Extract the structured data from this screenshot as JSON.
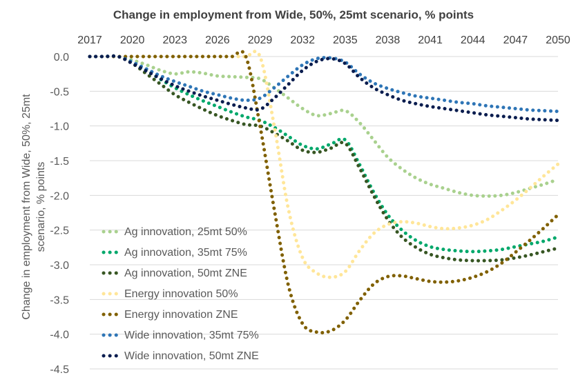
{
  "chart_data": {
    "type": "line",
    "title": "Change in employment from Wide, 50%, 25mt scenario, % points",
    "xlabel": "",
    "ylabel": "Change in employment from Wide, 50%, 25mt scenario, % points",
    "xlim": [
      2017,
      2050
    ],
    "ylim": [
      -4.5,
      0.0
    ],
    "x_ticks": [
      "2017",
      "2020",
      "2023",
      "2026",
      "2029",
      "2032",
      "2035",
      "2038",
      "2041",
      "2044",
      "2047",
      "2050"
    ],
    "y_ticks": [
      "0.0",
      "-0.5",
      "-1.0",
      "-1.5",
      "-2.0",
      "-2.5",
      "-3.0",
      "-3.5",
      "-4.0",
      "-4.5"
    ],
    "x_axis_position": "top",
    "grid": "horizontal",
    "legend_position": "bottom-left",
    "line_style": "dotted",
    "x": [
      2017,
      2018,
      2019,
      2020,
      2021,
      2022,
      2023,
      2024,
      2025,
      2026,
      2027,
      2028,
      2029,
      2030,
      2031,
      2032,
      2033,
      2034,
      2035,
      2036,
      2037,
      2038,
      2039,
      2040,
      2041,
      2042,
      2043,
      2044,
      2045,
      2046,
      2047,
      2048,
      2049,
      2050
    ],
    "series": [
      {
        "name": "Ag innovation, 25mt 50%",
        "color": "#a9d18e",
        "values": [
          0,
          0,
          0,
          -0.05,
          -0.12,
          -0.2,
          -0.25,
          -0.22,
          -0.24,
          -0.28,
          -0.29,
          -0.3,
          -0.32,
          -0.45,
          -0.6,
          -0.75,
          -0.85,
          -0.82,
          -0.78,
          -0.95,
          -1.2,
          -1.45,
          -1.62,
          -1.75,
          -1.84,
          -1.9,
          -1.96,
          -2.0,
          -2.01,
          -2.0,
          -1.96,
          -1.9,
          -1.84,
          -1.77
        ]
      },
      {
        "name": "Ag innovation, 35mt 75%",
        "color": "#00a86b",
        "values": [
          0,
          0,
          0,
          -0.08,
          -0.2,
          -0.33,
          -0.45,
          -0.55,
          -0.64,
          -0.72,
          -0.8,
          -0.87,
          -0.92,
          -1.02,
          -1.15,
          -1.28,
          -1.33,
          -1.26,
          -1.2,
          -1.55,
          -1.95,
          -2.28,
          -2.5,
          -2.65,
          -2.74,
          -2.78,
          -2.8,
          -2.81,
          -2.8,
          -2.78,
          -2.74,
          -2.7,
          -2.66,
          -2.6
        ]
      },
      {
        "name": "Ag innovation, 50mt ZNE",
        "color": "#375623",
        "values": [
          0,
          0,
          0,
          -0.1,
          -0.25,
          -0.4,
          -0.55,
          -0.66,
          -0.76,
          -0.85,
          -0.92,
          -0.98,
          -1.0,
          -1.1,
          -1.22,
          -1.35,
          -1.38,
          -1.32,
          -1.25,
          -1.6,
          -2.0,
          -2.35,
          -2.6,
          -2.75,
          -2.85,
          -2.9,
          -2.93,
          -2.94,
          -2.94,
          -2.93,
          -2.9,
          -2.86,
          -2.81,
          -2.76
        ]
      },
      {
        "name": "Energy innovation 50%",
        "color": "#ffe699",
        "values": [
          0,
          0,
          0,
          0,
          0,
          0,
          0,
          0,
          0,
          0,
          0,
          0,
          0,
          -1.0,
          -2.2,
          -2.9,
          -3.12,
          -3.18,
          -3.1,
          -2.8,
          -2.55,
          -2.42,
          -2.38,
          -2.4,
          -2.45,
          -2.48,
          -2.47,
          -2.43,
          -2.35,
          -2.22,
          -2.07,
          -1.9,
          -1.72,
          -1.55
        ]
      },
      {
        "name": "Energy innovation ZNE",
        "color": "#806000",
        "values": [
          0,
          0,
          0,
          0,
          0,
          0,
          0,
          0,
          0,
          0,
          0,
          0,
          -1.0,
          -2.2,
          -3.3,
          -3.85,
          -3.97,
          -3.95,
          -3.8,
          -3.52,
          -3.28,
          -3.17,
          -3.16,
          -3.2,
          -3.24,
          -3.25,
          -3.23,
          -3.18,
          -3.1,
          -2.98,
          -2.82,
          -2.65,
          -2.47,
          -2.28
        ]
      },
      {
        "name": "Wide innovation, 35mt 75%",
        "color": "#2e75b6",
        "values": [
          0,
          0,
          0,
          -0.08,
          -0.18,
          -0.28,
          -0.36,
          -0.43,
          -0.5,
          -0.55,
          -0.6,
          -0.63,
          -0.6,
          -0.45,
          -0.28,
          -0.12,
          -0.03,
          -0.02,
          -0.08,
          -0.25,
          -0.38,
          -0.46,
          -0.52,
          -0.57,
          -0.6,
          -0.63,
          -0.66,
          -0.68,
          -0.71,
          -0.73,
          -0.75,
          -0.77,
          -0.78,
          -0.79
        ]
      },
      {
        "name": "Wide innovation, 50mt ZNE",
        "color": "#0a1d4f",
        "values": [
          0,
          0,
          0,
          -0.1,
          -0.21,
          -0.32,
          -0.42,
          -0.5,
          -0.57,
          -0.63,
          -0.69,
          -0.74,
          -0.76,
          -0.6,
          -0.4,
          -0.2,
          -0.07,
          -0.03,
          -0.1,
          -0.3,
          -0.45,
          -0.55,
          -0.63,
          -0.68,
          -0.72,
          -0.75,
          -0.78,
          -0.81,
          -0.84,
          -0.86,
          -0.88,
          -0.9,
          -0.91,
          -0.92
        ]
      }
    ]
  }
}
